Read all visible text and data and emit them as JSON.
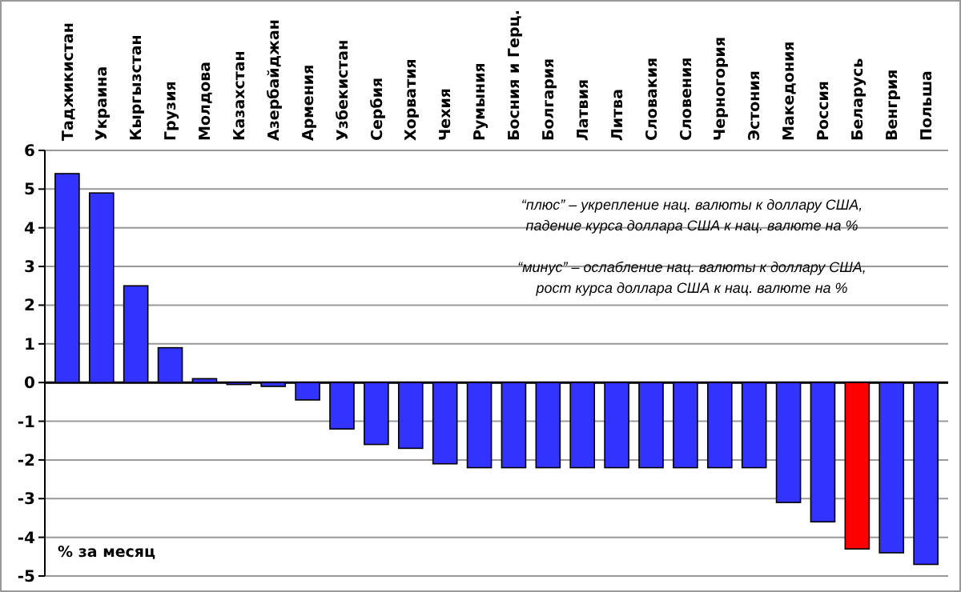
{
  "chart_data": {
    "type": "bar",
    "ylabel": "% за месяц",
    "categories": [
      "Таджикистан",
      "Украина",
      "Кыргызстан",
      "Грузия",
      "Молдова",
      "Казахстан",
      "Азербайджан",
      "Армения",
      "Узбекистан",
      "Сербия",
      "Хорватия",
      "Чехия",
      "Румыния",
      "Босния  и Герц.",
      "Болгария",
      "Латвия",
      "Литва",
      "Словакия",
      "Словения",
      "Черногория",
      "Эстония",
      "Македония",
      "Россия",
      "Беларусь",
      "Венгрия",
      "Польша"
    ],
    "values": [
      5.4,
      4.9,
      2.5,
      0.9,
      0.1,
      -0.05,
      -0.1,
      -0.45,
      -1.2,
      -1.6,
      -1.7,
      -2.1,
      -2.2,
      -2.2,
      -2.2,
      -2.2,
      -2.2,
      -2.2,
      -2.2,
      -2.2,
      -2.2,
      -3.1,
      -3.6,
      -4.3,
      -4.4,
      -4.7
    ],
    "colors": [
      "#3333ff",
      "#3333ff",
      "#3333ff",
      "#3333ff",
      "#3333ff",
      "#3333ff",
      "#3333ff",
      "#3333ff",
      "#3333ff",
      "#3333ff",
      "#3333ff",
      "#3333ff",
      "#3333ff",
      "#3333ff",
      "#3333ff",
      "#3333ff",
      "#3333ff",
      "#3333ff",
      "#3333ff",
      "#3333ff",
      "#3333ff",
      "#3333ff",
      "#3333ff",
      "#ff0000",
      "#3333ff",
      "#3333ff"
    ],
    "ylim": [
      -5,
      6
    ],
    "yticks": [
      6,
      5,
      4,
      3,
      2,
      1,
      0,
      -1,
      -2,
      -3,
      -4,
      -5
    ],
    "grid": "y",
    "annotations": [
      "“плюс” – укрепление нац. валюты к доллару США,\nпадение курса доллара США к нац. валюте на %",
      "“минус” – ослабление нац. валюты к доллару США,\nрост курса доллара США к нац. валюте на %"
    ]
  }
}
